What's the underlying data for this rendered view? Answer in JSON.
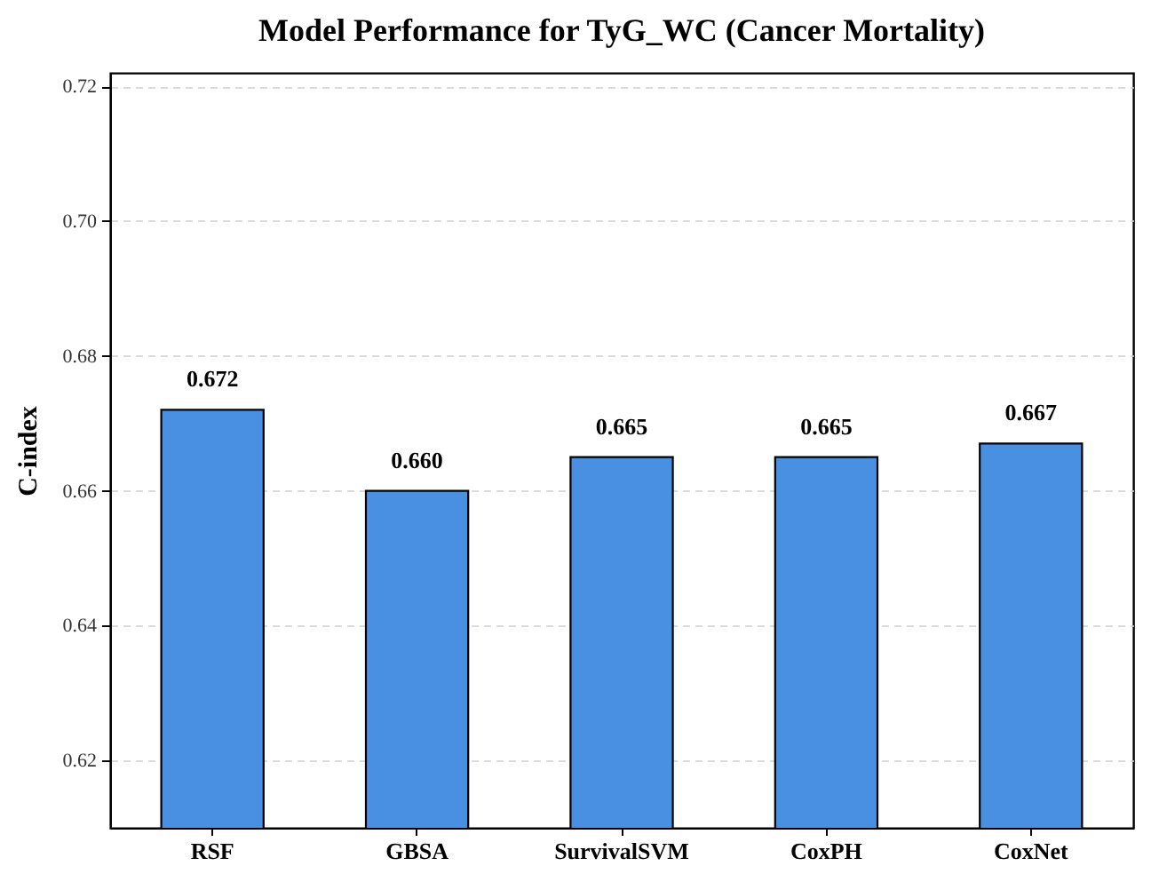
{
  "chart_data": {
    "type": "bar",
    "title": "Model Performance for TyG_WC (Cancer Mortality)",
    "ylabel": "C-index",
    "categories": [
      "RSF",
      "GBSA",
      "SurvivalSVM",
      "CoxPH",
      "CoxNet"
    ],
    "values": [
      0.672,
      0.66,
      0.665,
      0.665,
      0.667
    ],
    "value_labels": [
      "0.672",
      "0.660",
      "0.665",
      "0.665",
      "0.667"
    ],
    "color": "#4a90e2",
    "ylim": [
      0.61,
      0.722
    ],
    "yticks": [
      0.62,
      0.64,
      0.66,
      0.68,
      {
        "value": 0.7,
        "label": "0.70"
      },
      0.72
    ],
    "grid": "y"
  }
}
